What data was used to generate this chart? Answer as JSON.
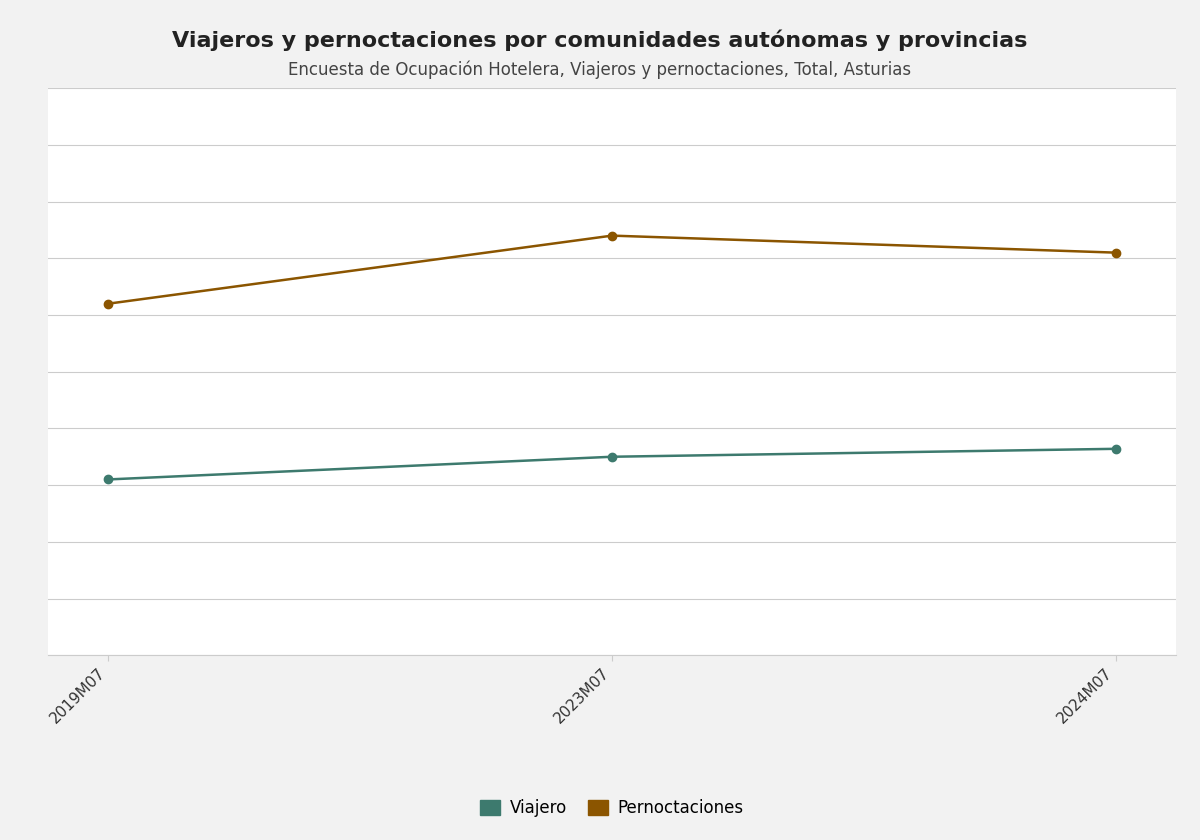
{
  "title": "Viajeros y pernoctaciones por comunidades autónomas y provincias",
  "subtitle": "Encuesta de Ocupación Hotelera, Viajeros y pernoctaciones, Total, Asturias",
  "x_labels": [
    "2019M07",
    "2023M07",
    "2024M07"
  ],
  "x_values": [
    0,
    1,
    2
  ],
  "viajero_values": [
    155000,
    175000,
    182000
  ],
  "pernoctaciones_values": [
    310000,
    370000,
    355000
  ],
  "viajero_color": "#3d7a6e",
  "pernoctaciones_color": "#8b5500",
  "background_color": "#f2f2f2",
  "plot_background": "#ffffff",
  "grid_color": "#cccccc",
  "title_fontsize": 16,
  "subtitle_fontsize": 12,
  "legend_labels": [
    "Viajero",
    "Pernoctaciones"
  ],
  "ylim": [
    0,
    500000
  ],
  "yticks": [
    0,
    50000,
    100000,
    150000,
    200000,
    250000,
    300000,
    350000,
    400000,
    450000,
    500000
  ],
  "marker_size": 6,
  "line_width": 1.8
}
